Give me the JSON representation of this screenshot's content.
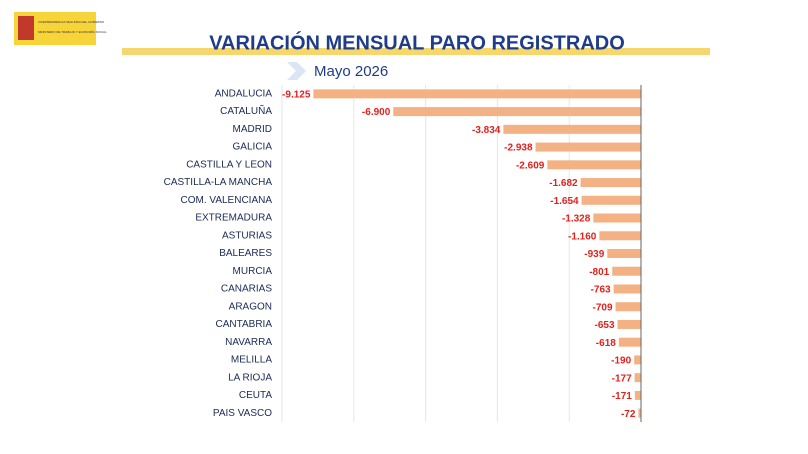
{
  "logo": {
    "lines": [
      "VICEPRESIDENCIA SEGUNDA DEL GOBIERNO",
      "MINISTERIO DE TRABAJO Y ECONOMÍA SOCIAL"
    ]
  },
  "chart_data": {
    "type": "bar",
    "orientation": "horizontal",
    "title": "VARIACIÓN MENSUAL PARO REGISTRADO",
    "subtitle": "Mayo 2026",
    "categories": [
      "ANDALUCIA",
      "CATALUÑA",
      "MADRID",
      "GALICIA",
      "CASTILLA Y LEON",
      "CASTILLA-LA MANCHA",
      "COM. VALENCIANA",
      "EXTREMADURA",
      "ASTURIAS",
      "BALEARES",
      "MURCIA",
      "CANARIAS",
      "ARAGON",
      "CANTABRIA",
      "NAVARRA",
      "MELILLA",
      "LA RIOJA",
      "CEUTA",
      "PAIS VASCO"
    ],
    "values": [
      -9125,
      -6900,
      -3834,
      -2938,
      -2609,
      -1682,
      -1654,
      -1328,
      -1160,
      -939,
      -801,
      -763,
      -709,
      -653,
      -618,
      -190,
      -177,
      -171,
      -72
    ],
    "value_labels": [
      "-9.125",
      "-6.900",
      "-3.834",
      "-2.938",
      "-2.609",
      "-1.682",
      "-1.654",
      "-1.328",
      "-1.160",
      "-939",
      "-801",
      "-763",
      "-709",
      "-653",
      "-618",
      "-190",
      "-177",
      "-171",
      "-72"
    ],
    "color": "#f4b183",
    "label_color": "#e3211c",
    "xlim": [
      -10000,
      0
    ],
    "grid_lines": [
      -10000,
      -8000,
      -6000,
      -4000,
      -2000
    ]
  }
}
